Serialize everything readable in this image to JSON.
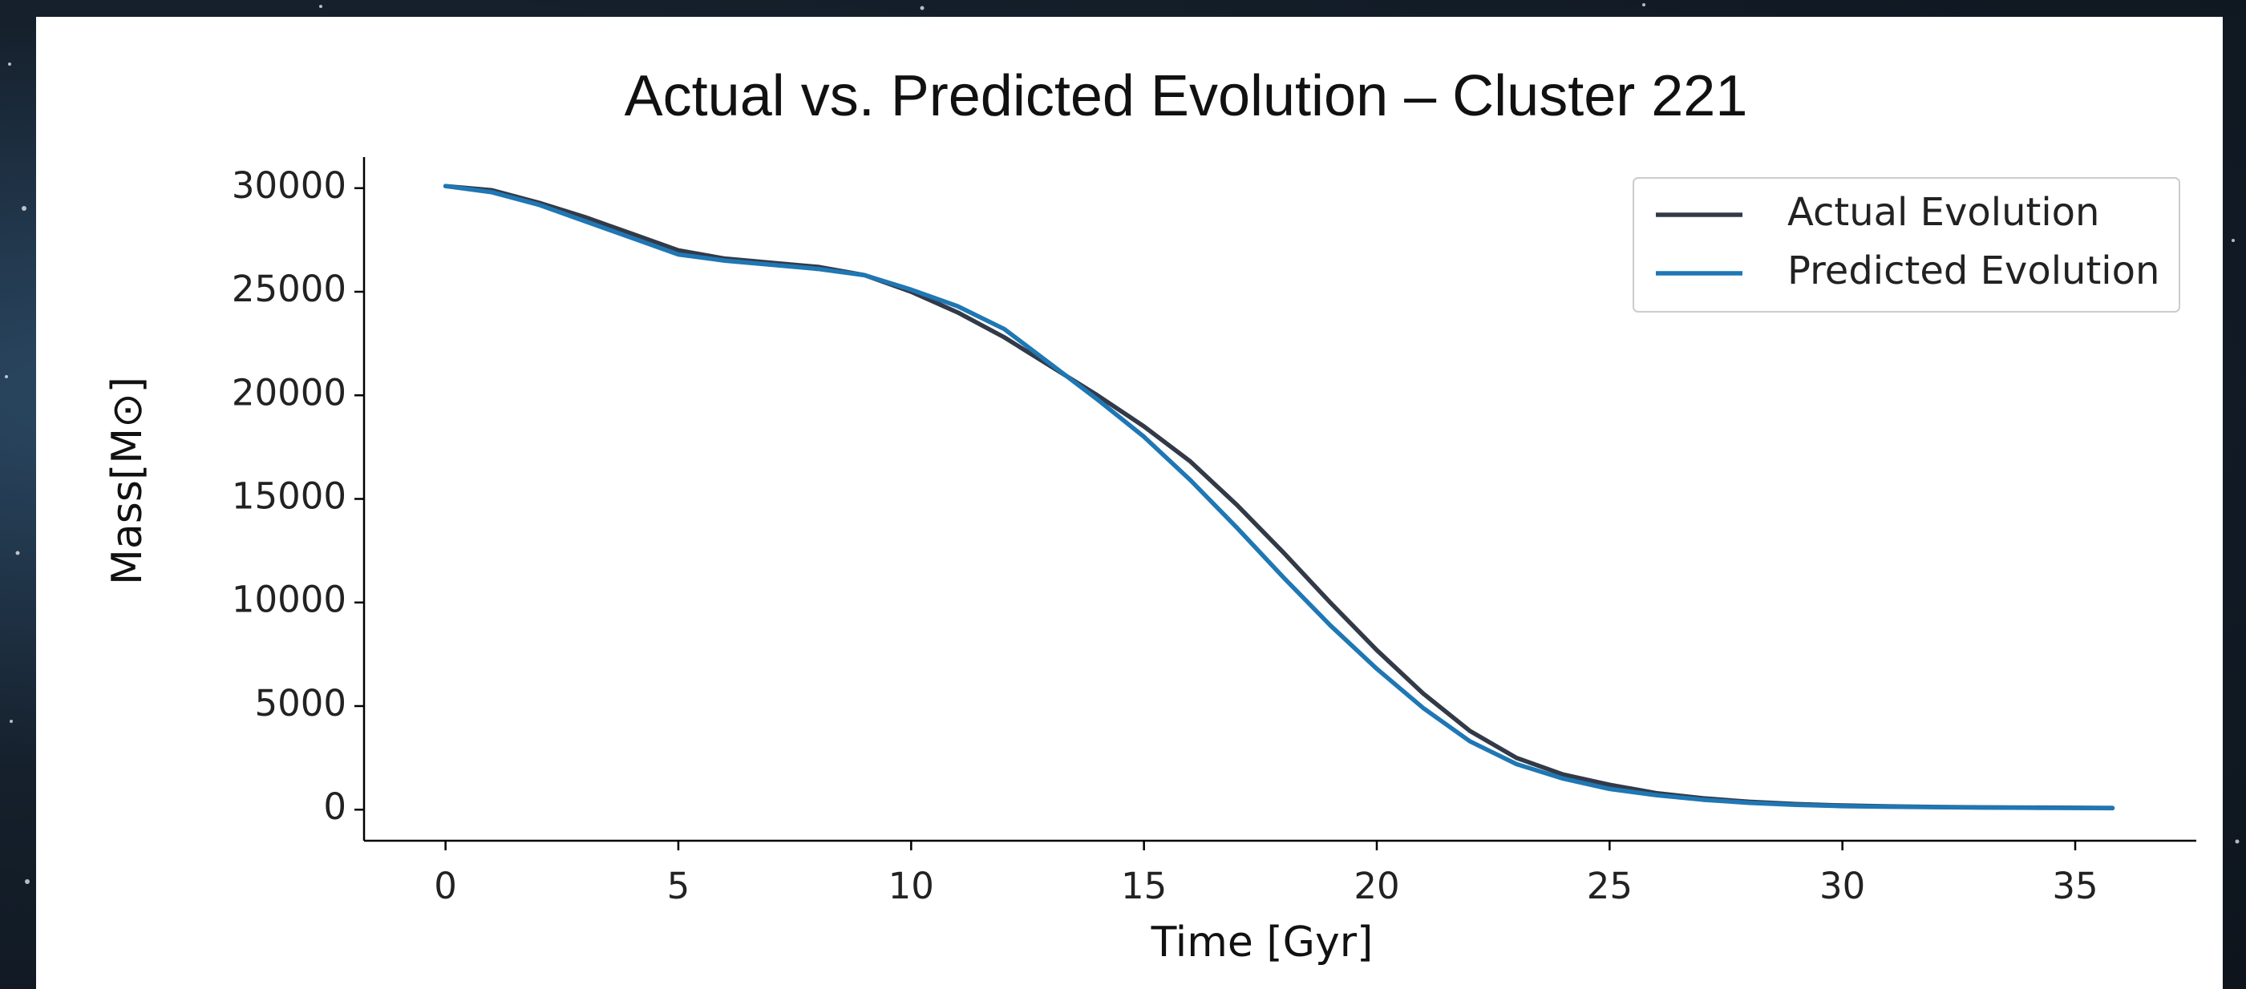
{
  "chart_data": {
    "type": "line",
    "title": "Actual vs. Predicted Evolution – Cluster 221",
    "xlabel": "Time [Gyr]",
    "ylabel": "Mass[M⊙]",
    "x": [
      0,
      1,
      2,
      3,
      4,
      5,
      6,
      7,
      8,
      9,
      10,
      11,
      12,
      13,
      14,
      15,
      16,
      17,
      18,
      19,
      20,
      21,
      22,
      23,
      24,
      25,
      26,
      27,
      28,
      29,
      30,
      31,
      32,
      33,
      34,
      35,
      35.8
    ],
    "series": [
      {
        "name": "Actual Evolution",
        "color": "#323a48",
        "values": [
          30100,
          29900,
          29300,
          28600,
          27800,
          27000,
          26600,
          26400,
          26200,
          25800,
          25000,
          24000,
          22800,
          21400,
          20000,
          18500,
          16800,
          14700,
          12400,
          10000,
          7700,
          5600,
          3800,
          2500,
          1700,
          1200,
          800,
          550,
          380,
          270,
          200,
          160,
          130,
          110,
          100,
          90,
          80
        ]
      },
      {
        "name": "Predicted Evolution",
        "color": "#1f77b4",
        "values": [
          30100,
          29800,
          29200,
          28400,
          27600,
          26800,
          26500,
          26300,
          26100,
          25800,
          25100,
          24300,
          23200,
          21500,
          19800,
          18000,
          15900,
          13600,
          11200,
          8900,
          6800,
          4900,
          3300,
          2200,
          1500,
          1000,
          700,
          480,
          330,
          230,
          170,
          140,
          120,
          100,
          90,
          80,
          70
        ]
      }
    ],
    "xlim": [
      -1.75,
      37.6
    ],
    "ylim": [
      -1500,
      31500
    ],
    "xticks": [
      0,
      5,
      10,
      15,
      20,
      25,
      30,
      35
    ],
    "yticks": [
      0,
      5000,
      10000,
      15000,
      20000,
      25000,
      30000
    ],
    "grid": false,
    "legend": "upper right"
  }
}
